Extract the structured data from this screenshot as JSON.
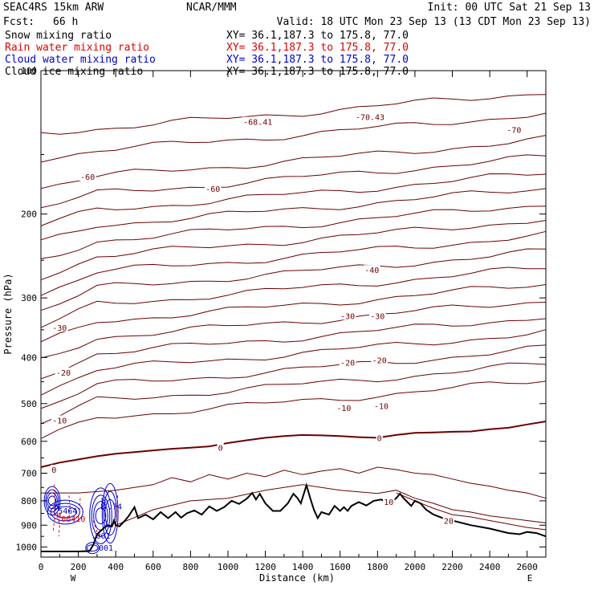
{
  "header": {
    "model": "SEAC4RS 15km ARW",
    "center": "NCAR/MMM",
    "init": "Init: 00 UTC Sat 21 Sep 13",
    "fcst_label": "Fcst:",
    "fcst_value": "66 h",
    "valid": "Valid: 18 UTC Mon 23 Sep 13 (13 CDT Mon 23 Sep 13)"
  },
  "fields": [
    {
      "name": "Snow mixing ratio",
      "xy": "XY=  36.1,187.3 to 175.8, 77.0",
      "color": "#000000"
    },
    {
      "name": "Rain water mixing ratio",
      "xy": "XY=  36.1,187.3 to 175.8, 77.0",
      "color": "#e00000"
    },
    {
      "name": "Cloud water mixing ratio",
      "xy": "XY=  36.1,187.3 to 175.8, 77.0",
      "color": "#0000cc"
    },
    {
      "name": "Cloud ice mixing ratio",
      "xy": "XY=  36.1,187.3 to 175.8, 77.0",
      "color": "#000000"
    }
  ],
  "chart_data": {
    "type": "line",
    "subtype": "vertical cross-section contour plot",
    "xlabel": "Distance (km)",
    "ylabel": "Pressure (hPa)",
    "xlim": [
      0,
      2700
    ],
    "ylim": [
      1050,
      100
    ],
    "y_scale": "log",
    "x_ticks": [
      0,
      200,
      400,
      600,
      800,
      1000,
      1200,
      1400,
      1600,
      1800,
      2000,
      2200,
      2400,
      2600
    ],
    "y_ticks": [
      100,
      200,
      300,
      400,
      500,
      600,
      700,
      800,
      900,
      1000
    ],
    "x_end_labels": {
      "left": "W",
      "right": "E"
    },
    "temperature_contour_labels": [
      {
        "text": "-68.41",
        "x": 1160,
        "y": 128
      },
      {
        "text": "-70.43",
        "x": 1760,
        "y": 125
      },
      {
        "text": "-70",
        "x": 2530,
        "y": 133
      },
      {
        "text": "-60",
        "x": 250,
        "y": 167
      },
      {
        "text": "-60",
        "x": 920,
        "y": 177
      },
      {
        "text": "-40",
        "x": 1770,
        "y": 262
      },
      {
        "text": "-30",
        "x": 1640,
        "y": 327
      },
      {
        "text": "-30",
        "x": 1800,
        "y": 327
      },
      {
        "text": "-30",
        "x": 100,
        "y": 346
      },
      {
        "text": "-20",
        "x": 1640,
        "y": 410
      },
      {
        "text": "-20",
        "x": 1810,
        "y": 405
      },
      {
        "text": "-20",
        "x": 120,
        "y": 430
      },
      {
        "text": "-10",
        "x": 1620,
        "y": 510
      },
      {
        "text": "-10",
        "x": 1820,
        "y": 505
      },
      {
        "text": "-10",
        "x": 100,
        "y": 542
      },
      {
        "text": "0",
        "x": 960,
        "y": 618
      },
      {
        "text": "0",
        "x": 1810,
        "y": 590
      },
      {
        "text": "0",
        "x": 70,
        "y": 688
      },
      {
        "text": "10",
        "x": 1860,
        "y": 803
      },
      {
        "text": "20",
        "x": 2180,
        "y": 880
      }
    ],
    "hydrometeor_labels": [
      {
        "text": "H",
        "x": 85,
        "y": 820,
        "color": "#0000cc"
      },
      {
        "text": ".5464",
        "x": 130,
        "y": 838,
        "color": "#0000cc"
      },
      {
        "text": "H",
        "x": 95,
        "y": 857,
        "color": "#e00000"
      },
      {
        "text": ".00410",
        "x": 160,
        "y": 872,
        "color": "#e00000"
      },
      {
        "text": "H",
        "x": 335,
        "y": 797,
        "color": "#0000cc"
      },
      {
        "text": "B",
        "x": 332,
        "y": 820,
        "color": "#0000cc"
      },
      {
        "text": ".74",
        "x": 395,
        "y": 820,
        "color": "#0000cc"
      },
      {
        "text": ".001",
        "x": 320,
        "y": 945,
        "color": "#0000cc"
      },
      {
        "text": ".001",
        "x": 335,
        "y": 1002,
        "color": "#0000cc"
      }
    ],
    "series": [
      {
        "name": "",
        "kind": "terrain",
        "color": "#000000",
        "x": [
          0,
          100,
          200,
          260,
          280,
          300,
          340,
          360,
          380,
          390,
          400,
          420,
          450,
          470,
          500,
          520,
          560,
          600,
          640,
          680,
          720,
          750,
          780,
          820,
          860,
          900,
          940,
          980,
          1020,
          1060,
          1100,
          1130,
          1150,
          1170,
          1200,
          1240,
          1280,
          1320,
          1350,
          1370,
          1390,
          1420,
          1440,
          1460,
          1480,
          1500,
          1540,
          1570,
          1600,
          1620,
          1640,
          1660,
          1700,
          1740,
          1780,
          1820,
          1860,
          1900,
          1920,
          1940,
          1960,
          1980,
          2000,
          2030,
          2060,
          2100,
          2150,
          2200,
          2300,
          2400,
          2500,
          2560,
          2600,
          2650,
          2700
        ],
        "y": [
          1022,
          1022,
          1022,
          1020,
          990,
          940,
          910,
          900,
          905,
          880,
          900,
          905,
          880,
          860,
          825,
          870,
          855,
          875,
          845,
          870,
          845,
          868,
          850,
          838,
          855,
          822,
          840,
          825,
          800,
          812,
          792,
          770,
          795,
          773,
          810,
          840,
          840,
          810,
          773,
          788,
          810,
          742,
          790,
          835,
          870,
          845,
          855,
          820,
          840,
          825,
          840,
          820,
          805,
          818,
          800,
          795,
          812,
          790,
          773,
          790,
          805,
          820,
          800,
          810,
          835,
          855,
          870,
          880,
          900,
          915,
          935,
          940,
          930,
          935,
          950
        ]
      },
      {
        "name": "",
        "kind": "isotherm",
        "color": "#6b0000",
        "level": "0",
        "x": [
          0,
          100,
          200,
          300,
          400,
          500,
          600,
          700,
          800,
          900,
          1000,
          1100,
          1200,
          1300,
          1400,
          1500,
          1600,
          1700,
          1800,
          1900,
          2000,
          2100,
          2200,
          2300,
          2400,
          2500,
          2600,
          2700
        ],
        "y": [
          680,
          665,
          655,
          645,
          637,
          632,
          627,
          622,
          619,
          615,
          605,
          597,
          590,
          585,
          582,
          583,
          585,
          588,
          590,
          582,
          576,
          575,
          573,
          572,
          566,
          562,
          553,
          545
        ]
      }
    ]
  }
}
